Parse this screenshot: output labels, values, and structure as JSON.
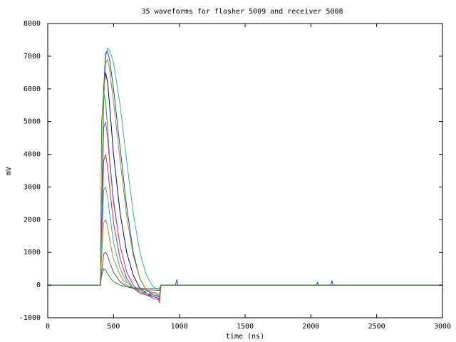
{
  "chart_data": {
    "type": "line",
    "title": "35 waveforms for flasher 5009 and receiver 5008",
    "x_label": "time (ns)",
    "y_label": "mV",
    "xlim": [
      0,
      3000
    ],
    "xticks": [
      0,
      500,
      1000,
      1500,
      2000,
      2500,
      3000
    ],
    "ylim": [
      -1000,
      8000
    ],
    "yticks": [
      -1000,
      0,
      1000,
      2000,
      3000,
      4000,
      5000,
      6000,
      7000,
      8000
    ],
    "x": [
      0,
      400,
      410,
      425,
      440,
      455,
      470,
      500,
      550,
      600,
      650,
      700,
      750,
      800,
      840,
      850,
      860,
      970,
      980,
      990,
      2040,
      2050,
      2060,
      2150,
      2160,
      2170,
      3000
    ],
    "series": [
      {
        "color": "#3fae9e",
        "values": [
          0,
          0,
          1500,
          5500,
          7000,
          7250,
          7200,
          6800,
          5500,
          3800,
          2200,
          1000,
          300,
          -50,
          -150,
          -150,
          0,
          0,
          0,
          0,
          0,
          0,
          0,
          0,
          0,
          0,
          0
        ]
      },
      {
        "color": "#1f3fbf",
        "values": [
          0,
          0,
          1800,
          6000,
          7100,
          7150,
          6900,
          6000,
          4200,
          2400,
          1000,
          200,
          -150,
          -300,
          -350,
          -380,
          0,
          0,
          150,
          0,
          0,
          80,
          0,
          0,
          130,
          0,
          0
        ]
      },
      {
        "color": "#00008b",
        "values": [
          0,
          0,
          2000,
          6000,
          6500,
          6200,
          5500,
          4000,
          2200,
          1000,
          300,
          -100,
          -250,
          -350,
          -400,
          -450,
          0,
          0,
          0,
          0,
          0,
          0,
          0,
          0,
          0,
          0,
          0
        ]
      },
      {
        "color": "#22aa22",
        "values": [
          0,
          0,
          5000,
          5900,
          5600,
          4800,
          3900,
          2600,
          1200,
          400,
          0,
          -200,
          -300,
          -400,
          -450,
          -550,
          0,
          0,
          0,
          0,
          0,
          0,
          0,
          0,
          0,
          0,
          0
        ]
      },
      {
        "color": "#8a9a2a",
        "values": [
          0,
          0,
          1600,
          5800,
          6800,
          6900,
          6600,
          5600,
          3800,
          2100,
          900,
          200,
          -150,
          -250,
          -300,
          -300,
          0,
          0,
          0,
          0,
          0,
          0,
          0,
          0,
          0,
          0,
          0
        ]
      },
      {
        "color": "#c040c0",
        "values": [
          0,
          0,
          1800,
          4800,
          5000,
          4500,
          3800,
          2500,
          1200,
          400,
          0,
          -200,
          -300,
          -400,
          -450,
          -500,
          0,
          0,
          0,
          0,
          0,
          0,
          0,
          0,
          0,
          0,
          0
        ]
      },
      {
        "color": "#cc3333",
        "values": [
          0,
          0,
          1500,
          3800,
          4000,
          3600,
          3000,
          1900,
          800,
          200,
          -100,
          -250,
          -300,
          -350,
          -400,
          -420,
          0,
          0,
          0,
          0,
          0,
          0,
          0,
          0,
          0,
          0,
          0
        ]
      },
      {
        "color": "#22bbcc",
        "values": [
          0,
          0,
          1200,
          2900,
          3000,
          2700,
          2200,
          1300,
          500,
          100,
          -100,
          -200,
          -250,
          -300,
          -320,
          -330,
          0,
          0,
          0,
          0,
          0,
          0,
          0,
          0,
          0,
          0,
          0
        ]
      },
      {
        "color": "#d08020",
        "values": [
          0,
          0,
          900,
          1900,
          2000,
          1800,
          1400,
          800,
          300,
          0,
          -100,
          -150,
          -200,
          -220,
          -250,
          -250,
          0,
          0,
          0,
          0,
          0,
          0,
          0,
          0,
          0,
          0,
          0
        ]
      },
      {
        "color": "#7040a0",
        "values": [
          0,
          0,
          400,
          950,
          1000,
          900,
          700,
          400,
          100,
          -50,
          -100,
          -120,
          -150,
          -150,
          -160,
          -160,
          0,
          0,
          0,
          0,
          0,
          0,
          0,
          0,
          0,
          0,
          0
        ]
      },
      {
        "color": "#228833",
        "values": [
          0,
          0,
          300,
          500,
          450,
          350,
          250,
          100,
          0,
          -50,
          -80,
          -90,
          -100,
          -100,
          -100,
          -100,
          0,
          0,
          0,
          0,
          0,
          0,
          0,
          0,
          0,
          0,
          0
        ]
      }
    ]
  }
}
